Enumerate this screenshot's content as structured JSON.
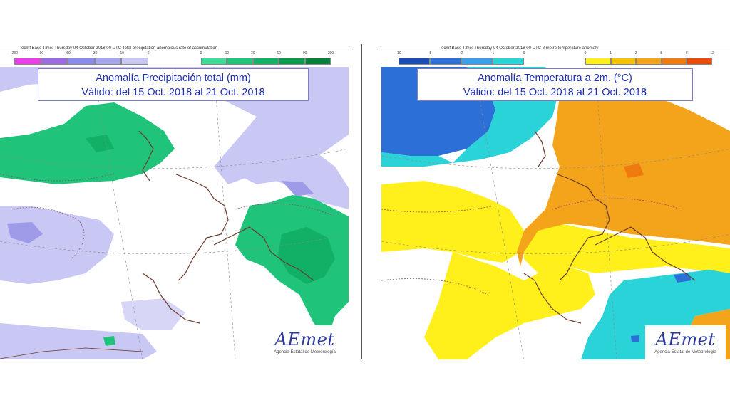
{
  "panels": [
    {
      "header_text": "ecmf  Base Time: Thursday 04 October 2018 00 UTC Total precipitation anomalous rate of accumulation",
      "title_line1": "Anomalía Precipitación total (mm)",
      "title_line2": "Válido: del 15 Oct. 2018 al 21 Oct. 2018",
      "scale_neg": {
        "ticks": [
          "-200",
          "-90",
          "-60",
          "-30",
          "-10",
          "0"
        ],
        "colors": [
          "#e83fe8",
          "#9b6ae0",
          "#8a8aea",
          "#a6a6ee",
          "#c9c8f4"
        ]
      },
      "scale_pos": {
        "ticks": [
          "0",
          "10",
          "30",
          "60",
          "90",
          "200"
        ],
        "colors": [
          "#3ddc97",
          "#1fc47a",
          "#12b066",
          "#0a9a4e",
          "#06803c"
        ]
      },
      "logo_text": "AEmet",
      "logo_sub": "Agencia Estatal de Meteorología"
    },
    {
      "header_text": "ecmf  Base Time: Thursday 04 October 2018 00 UTC 2 metre temperature anomaly",
      "title_line1": "Anomalía Temperatura a 2m. (°C)",
      "title_line2": "Válido: del 15 Oct. 2018 al 21 Oct. 2018",
      "scale_neg": {
        "ticks": [
          "-10",
          "-5",
          "-2",
          "-1",
          "0"
        ],
        "colors": [
          "#1a4fb5",
          "#2c6fd6",
          "#3a9ee8",
          "#2ad3d8"
        ]
      },
      "scale_pos": {
        "ticks": [
          "0",
          "1",
          "2",
          "5",
          "8",
          "12"
        ],
        "colors": [
          "#ffef1a",
          "#f5c400",
          "#f3a41a",
          "#ef7a10",
          "#e84a0a"
        ]
      },
      "logo_text": "AEmet",
      "logo_sub": "Agencia Estatal de Meteorología"
    }
  ],
  "colors": {
    "precip_dry": "#c9c8f4",
    "precip_dry_strong": "#9e9ce8",
    "precip_wet": "#1fc47a",
    "precip_wet_strong": "#12b066",
    "temp_cold": "#2c6fd6",
    "temp_cool": "#2ad3d8",
    "temp_warm": "#ffef1a",
    "temp_hot": "#f3a41a",
    "coast": "#6b3a2a",
    "title_text": "#1c2fb0"
  }
}
